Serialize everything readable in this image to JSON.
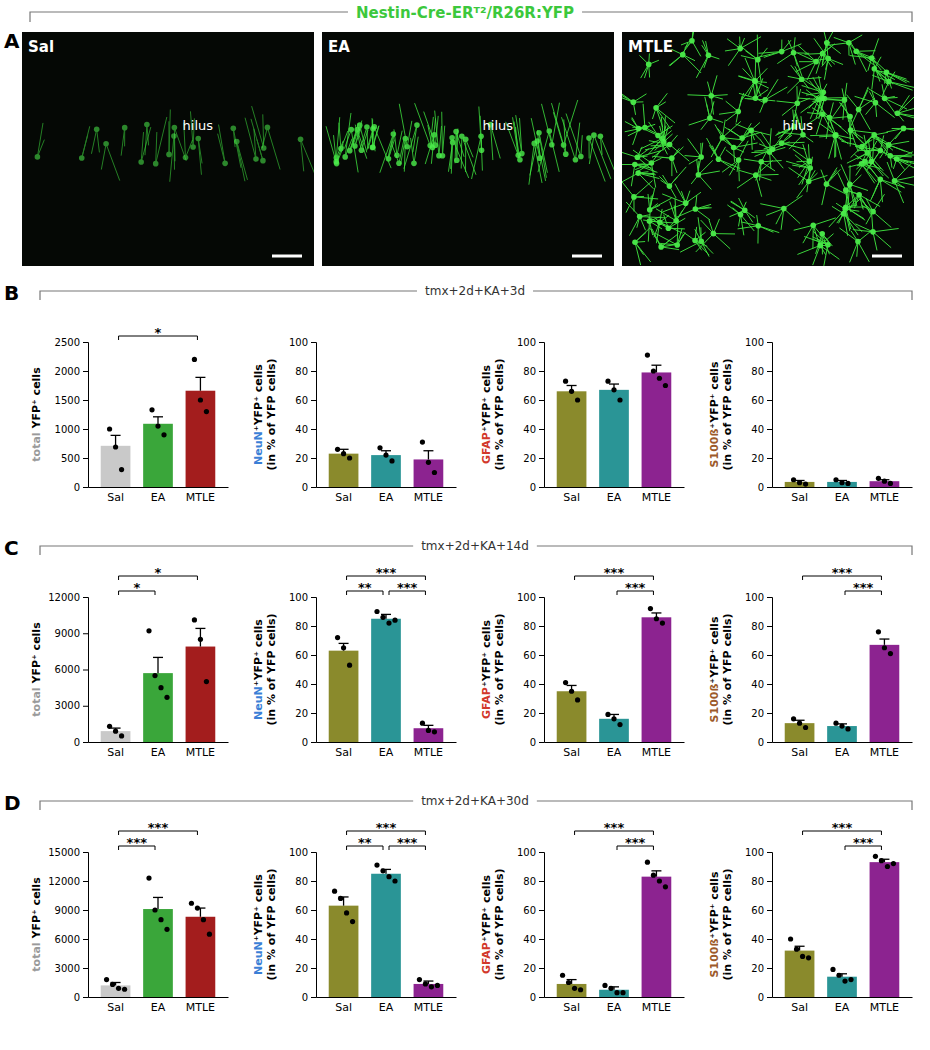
{
  "panel_a": {
    "label": "A",
    "title": "Nestin-Cre-ERᵀ²/R26R:YFP",
    "color": "#3cc83c",
    "images": [
      {
        "label": "Sal",
        "annotation": "hilus"
      },
      {
        "label": "EA",
        "annotation": "hilus"
      },
      {
        "label": "MTLE",
        "annotation": "hilus"
      }
    ]
  },
  "rows": [
    {
      "label": "B",
      "title": "tmx+2d+KA+3d"
    },
    {
      "label": "C",
      "title": "tmx+2d+KA+14d"
    },
    {
      "label": "D",
      "title": "tmx+2d+KA+30d"
    }
  ],
  "chart_data": [
    {
      "type": "bar",
      "categories": [
        "Sal",
        "EA",
        "MTLE"
      ],
      "values": [
        710,
        1090,
        1660
      ],
      "errors": [
        180,
        120,
        230
      ],
      "points": [
        [
          1000,
          690,
          300
        ],
        [
          1330,
          1050,
          900
        ],
        [
          2200,
          1500,
          1300
        ]
      ],
      "colors": [
        "#c9c9c9",
        "#3aa63a",
        "#a31d1d"
      ],
      "ylim": [
        0,
        2500
      ],
      "yticks": [
        0,
        500,
        1000,
        1500,
        2000,
        2500
      ],
      "y_label": [
        [
          {
            "text": "total",
            "color": "#9a9a9a"
          },
          {
            "text": " YFP⁺ cells"
          }
        ]
      ],
      "annotations": [
        {
          "from": "Sal",
          "to": "MTLE",
          "text": "*"
        }
      ]
    },
    {
      "type": "bar",
      "categories": [
        "Sal",
        "EA",
        "MTLE"
      ],
      "values": [
        23,
        22,
        19
      ],
      "errors": [
        3,
        3,
        6
      ],
      "points": [
        [
          26,
          23,
          20
        ],
        [
          27,
          22,
          18
        ],
        [
          31,
          17,
          10
        ]
      ],
      "colors": [
        "#8a8a2c",
        "#2a9596",
        "#8c2390"
      ],
      "ylim": [
        0,
        100
      ],
      "yticks": [
        0,
        20,
        40,
        60,
        80,
        100
      ],
      "y_label": [
        [
          {
            "text": "NeuN",
            "color": "#3b7fd6"
          },
          {
            "text": "⁺YFP⁺ cells"
          }
        ],
        [
          {
            "text": "(in % of YFP cells)"
          }
        ]
      ],
      "annotations": []
    },
    {
      "type": "bar",
      "categories": [
        "Sal",
        "EA",
        "MTLE"
      ],
      "values": [
        66,
        67,
        79
      ],
      "errors": [
        4,
        4,
        5
      ],
      "points": [
        [
          73,
          66,
          60
        ],
        [
          73,
          67,
          60
        ],
        [
          91,
          80,
          75,
          70
        ]
      ],
      "colors": [
        "#8a8a2c",
        "#2a9596",
        "#8c2390"
      ],
      "ylim": [
        0,
        100
      ],
      "yticks": [
        0,
        20,
        40,
        60,
        80,
        100
      ],
      "y_label": [
        [
          {
            "text": "GFAP",
            "color": "#d2382b"
          },
          {
            "text": "⁺YFP⁺ cells"
          }
        ],
        [
          {
            "text": "(in % of YFP cells)"
          }
        ]
      ],
      "annotations": []
    },
    {
      "type": "bar",
      "categories": [
        "Sal",
        "EA",
        "MTLE"
      ],
      "values": [
        3.5,
        3.5,
        4
      ],
      "errors": [
        1,
        1,
        1
      ],
      "points": [
        [
          5,
          3,
          2
        ],
        [
          5,
          3,
          2.5
        ],
        [
          6,
          4,
          2.5
        ]
      ],
      "colors": [
        "#8a8a2c",
        "#2a9596",
        "#8c2390"
      ],
      "ylim": [
        0,
        100
      ],
      "yticks": [
        0,
        20,
        40,
        60,
        80,
        100
      ],
      "y_label": [
        [
          {
            "text": "S100ß",
            "color": "#9c5a2b"
          },
          {
            "text": "⁺YFP⁺ cells"
          }
        ],
        [
          {
            "text": "(in % of YFP cells)"
          }
        ]
      ],
      "annotations": []
    },
    {
      "type": "bar",
      "categories": [
        "Sal",
        "EA",
        "MTLE"
      ],
      "values": [
        900,
        5700,
        7900
      ],
      "errors": [
        250,
        1300,
        1500
      ],
      "points": [
        [
          1300,
          900,
          500
        ],
        [
          9200,
          5500,
          4500,
          3700
        ],
        [
          10100,
          8500,
          5000
        ]
      ],
      "colors": [
        "#c9c9c9",
        "#3aa63a",
        "#a31d1d"
      ],
      "ylim": [
        0,
        12000
      ],
      "yticks": [
        0,
        3000,
        6000,
        9000,
        12000
      ],
      "y_label": [
        [
          {
            "text": "total",
            "color": "#9a9a9a"
          },
          {
            "text": " YFP⁺ cells"
          }
        ]
      ],
      "annotations": [
        {
          "from": "Sal",
          "to": "EA",
          "text": "*"
        },
        {
          "from": "Sal",
          "to": "MTLE",
          "text": "*"
        }
      ]
    },
    {
      "type": "bar",
      "categories": [
        "Sal",
        "EA",
        "MTLE"
      ],
      "values": [
        63,
        85,
        9.5
      ],
      "errors": [
        5,
        3,
        2
      ],
      "points": [
        [
          72,
          65,
          53
        ],
        [
          90,
          86,
          82,
          84
        ],
        [
          13,
          8,
          7
        ]
      ],
      "colors": [
        "#8a8a2c",
        "#2a9596",
        "#8c2390"
      ],
      "ylim": [
        0,
        100
      ],
      "yticks": [
        0,
        20,
        40,
        60,
        80,
        100
      ],
      "y_label": [
        [
          {
            "text": "NeuN",
            "color": "#3b7fd6"
          },
          {
            "text": "⁺YFP⁺ cells"
          }
        ],
        [
          {
            "text": "(in % of YFP cells)"
          }
        ]
      ],
      "annotations": [
        {
          "from": "Sal",
          "to": "EA",
          "text": "**"
        },
        {
          "from": "EA",
          "to": "MTLE",
          "text": "***"
        },
        {
          "from": "Sal",
          "to": "MTLE",
          "text": "***"
        }
      ]
    },
    {
      "type": "bar",
      "categories": [
        "Sal",
        "EA",
        "MTLE"
      ],
      "values": [
        35,
        16,
        86
      ],
      "errors": [
        4,
        3,
        3
      ],
      "points": [
        [
          41,
          35,
          29
        ],
        [
          19,
          16,
          12
        ],
        [
          92,
          85,
          82
        ]
      ],
      "colors": [
        "#8a8a2c",
        "#2a9596",
        "#8c2390"
      ],
      "ylim": [
        0,
        100
      ],
      "yticks": [
        0,
        20,
        40,
        60,
        80,
        100
      ],
      "y_label": [
        [
          {
            "text": "GFAP",
            "color": "#d2382b"
          },
          {
            "text": "⁺YFP⁺ cells"
          }
        ],
        [
          {
            "text": "(in % of YFP cells)"
          }
        ]
      ],
      "annotations": [
        {
          "from": "EA",
          "to": "MTLE",
          "text": "***"
        },
        {
          "from": "Sal",
          "to": "MTLE",
          "text": "***"
        }
      ]
    },
    {
      "type": "bar",
      "categories": [
        "Sal",
        "EA",
        "MTLE"
      ],
      "values": [
        13,
        11,
        67
      ],
      "errors": [
        2,
        1.5,
        4
      ],
      "points": [
        [
          16,
          13,
          10
        ],
        [
          13,
          11,
          9
        ],
        [
          76,
          65,
          61
        ]
      ],
      "colors": [
        "#8a8a2c",
        "#2a9596",
        "#8c2390"
      ],
      "ylim": [
        0,
        100
      ],
      "yticks": [
        0,
        20,
        40,
        60,
        80,
        100
      ],
      "y_label": [
        [
          {
            "text": "S100ß",
            "color": "#9c5a2b"
          },
          {
            "text": "⁺YFP⁺ cells"
          }
        ],
        [
          {
            "text": "(in % of YFP cells)"
          }
        ]
      ],
      "annotations": [
        {
          "from": "EA",
          "to": "MTLE",
          "text": "***"
        },
        {
          "from": "Sal",
          "to": "MTLE",
          "text": "***"
        }
      ]
    },
    {
      "type": "bar",
      "categories": [
        "Sal",
        "EA",
        "MTLE"
      ],
      "values": [
        1200,
        9100,
        8300
      ],
      "errors": [
        300,
        1200,
        900
      ],
      "points": [
        [
          1800,
          1300,
          900,
          800
        ],
        [
          12300,
          9000,
          8000,
          7000
        ],
        [
          9700,
          9200,
          8000,
          6500
        ]
      ],
      "colors": [
        "#c9c9c9",
        "#3aa63a",
        "#a31d1d"
      ],
      "ylim": [
        0,
        15000
      ],
      "yticks": [
        0,
        3000,
        6000,
        9000,
        12000,
        15000
      ],
      "y_label": [
        [
          {
            "text": "total",
            "color": "#9a9a9a"
          },
          {
            "text": " YFP⁺ cells"
          }
        ]
      ],
      "annotations": [
        {
          "from": "Sal",
          "to": "EA",
          "text": "***"
        },
        {
          "from": "Sal",
          "to": "MTLE",
          "text": "***"
        }
      ]
    },
    {
      "type": "bar",
      "categories": [
        "Sal",
        "EA",
        "MTLE"
      ],
      "values": [
        63,
        85,
        9
      ],
      "errors": [
        6,
        3,
        2
      ],
      "points": [
        [
          73,
          68,
          58,
          52
        ],
        [
          91,
          87,
          83,
          80
        ],
        [
          12,
          9,
          7,
          8
        ]
      ],
      "colors": [
        "#8a8a2c",
        "#2a9596",
        "#8c2390"
      ],
      "ylim": [
        0,
        100
      ],
      "yticks": [
        0,
        20,
        40,
        60,
        80,
        100
      ],
      "y_label": [
        [
          {
            "text": "NeuN",
            "color": "#3b7fd6"
          },
          {
            "text": "⁺YFP⁺ cells"
          }
        ],
        [
          {
            "text": "(in % of YFP cells)"
          }
        ]
      ],
      "annotations": [
        {
          "from": "Sal",
          "to": "EA",
          "text": "**"
        },
        {
          "from": "EA",
          "to": "MTLE",
          "text": "***"
        },
        {
          "from": "Sal",
          "to": "MTLE",
          "text": "***"
        }
      ]
    },
    {
      "type": "bar",
      "categories": [
        "Sal",
        "EA",
        "MTLE"
      ],
      "values": [
        9,
        5,
        83
      ],
      "errors": [
        3,
        2,
        4
      ],
      "points": [
        [
          15,
          10,
          6,
          5
        ],
        [
          8,
          6,
          3,
          3
        ],
        [
          93,
          84,
          80,
          76
        ]
      ],
      "colors": [
        "#8a8a2c",
        "#2a9596",
        "#8c2390"
      ],
      "ylim": [
        0,
        100
      ],
      "yticks": [
        0,
        20,
        40,
        60,
        80,
        100
      ],
      "y_label": [
        [
          {
            "text": "GFAP",
            "color": "#d2382b"
          },
          {
            "text": "⁺YFP⁺ cells"
          }
        ],
        [
          {
            "text": "(in % of YFP cells)"
          }
        ]
      ],
      "annotations": [
        {
          "from": "EA",
          "to": "MTLE",
          "text": "***"
        },
        {
          "from": "Sal",
          "to": "MTLE",
          "text": "***"
        }
      ]
    },
    {
      "type": "bar",
      "categories": [
        "Sal",
        "EA",
        "MTLE"
      ],
      "values": [
        32,
        14,
        93
      ],
      "errors": [
        3,
        2,
        2
      ],
      "points": [
        [
          40,
          33,
          28,
          27
        ],
        [
          19,
          15,
          11,
          12
        ],
        [
          97,
          94,
          90,
          92
        ]
      ],
      "colors": [
        "#8a8a2c",
        "#2a9596",
        "#8c2390"
      ],
      "ylim": [
        0,
        100
      ],
      "yticks": [
        0,
        20,
        40,
        60,
        80,
        100
      ],
      "y_label": [
        [
          {
            "text": "S100ß",
            "color": "#9c5a2b"
          },
          {
            "text": "⁺YFP⁺ cells"
          }
        ],
        [
          {
            "text": "(in % of YFP cells)"
          }
        ]
      ],
      "annotations": [
        {
          "from": "EA",
          "to": "MTLE",
          "text": "***"
        },
        {
          "from": "Sal",
          "to": "MTLE",
          "text": "***"
        }
      ]
    }
  ]
}
